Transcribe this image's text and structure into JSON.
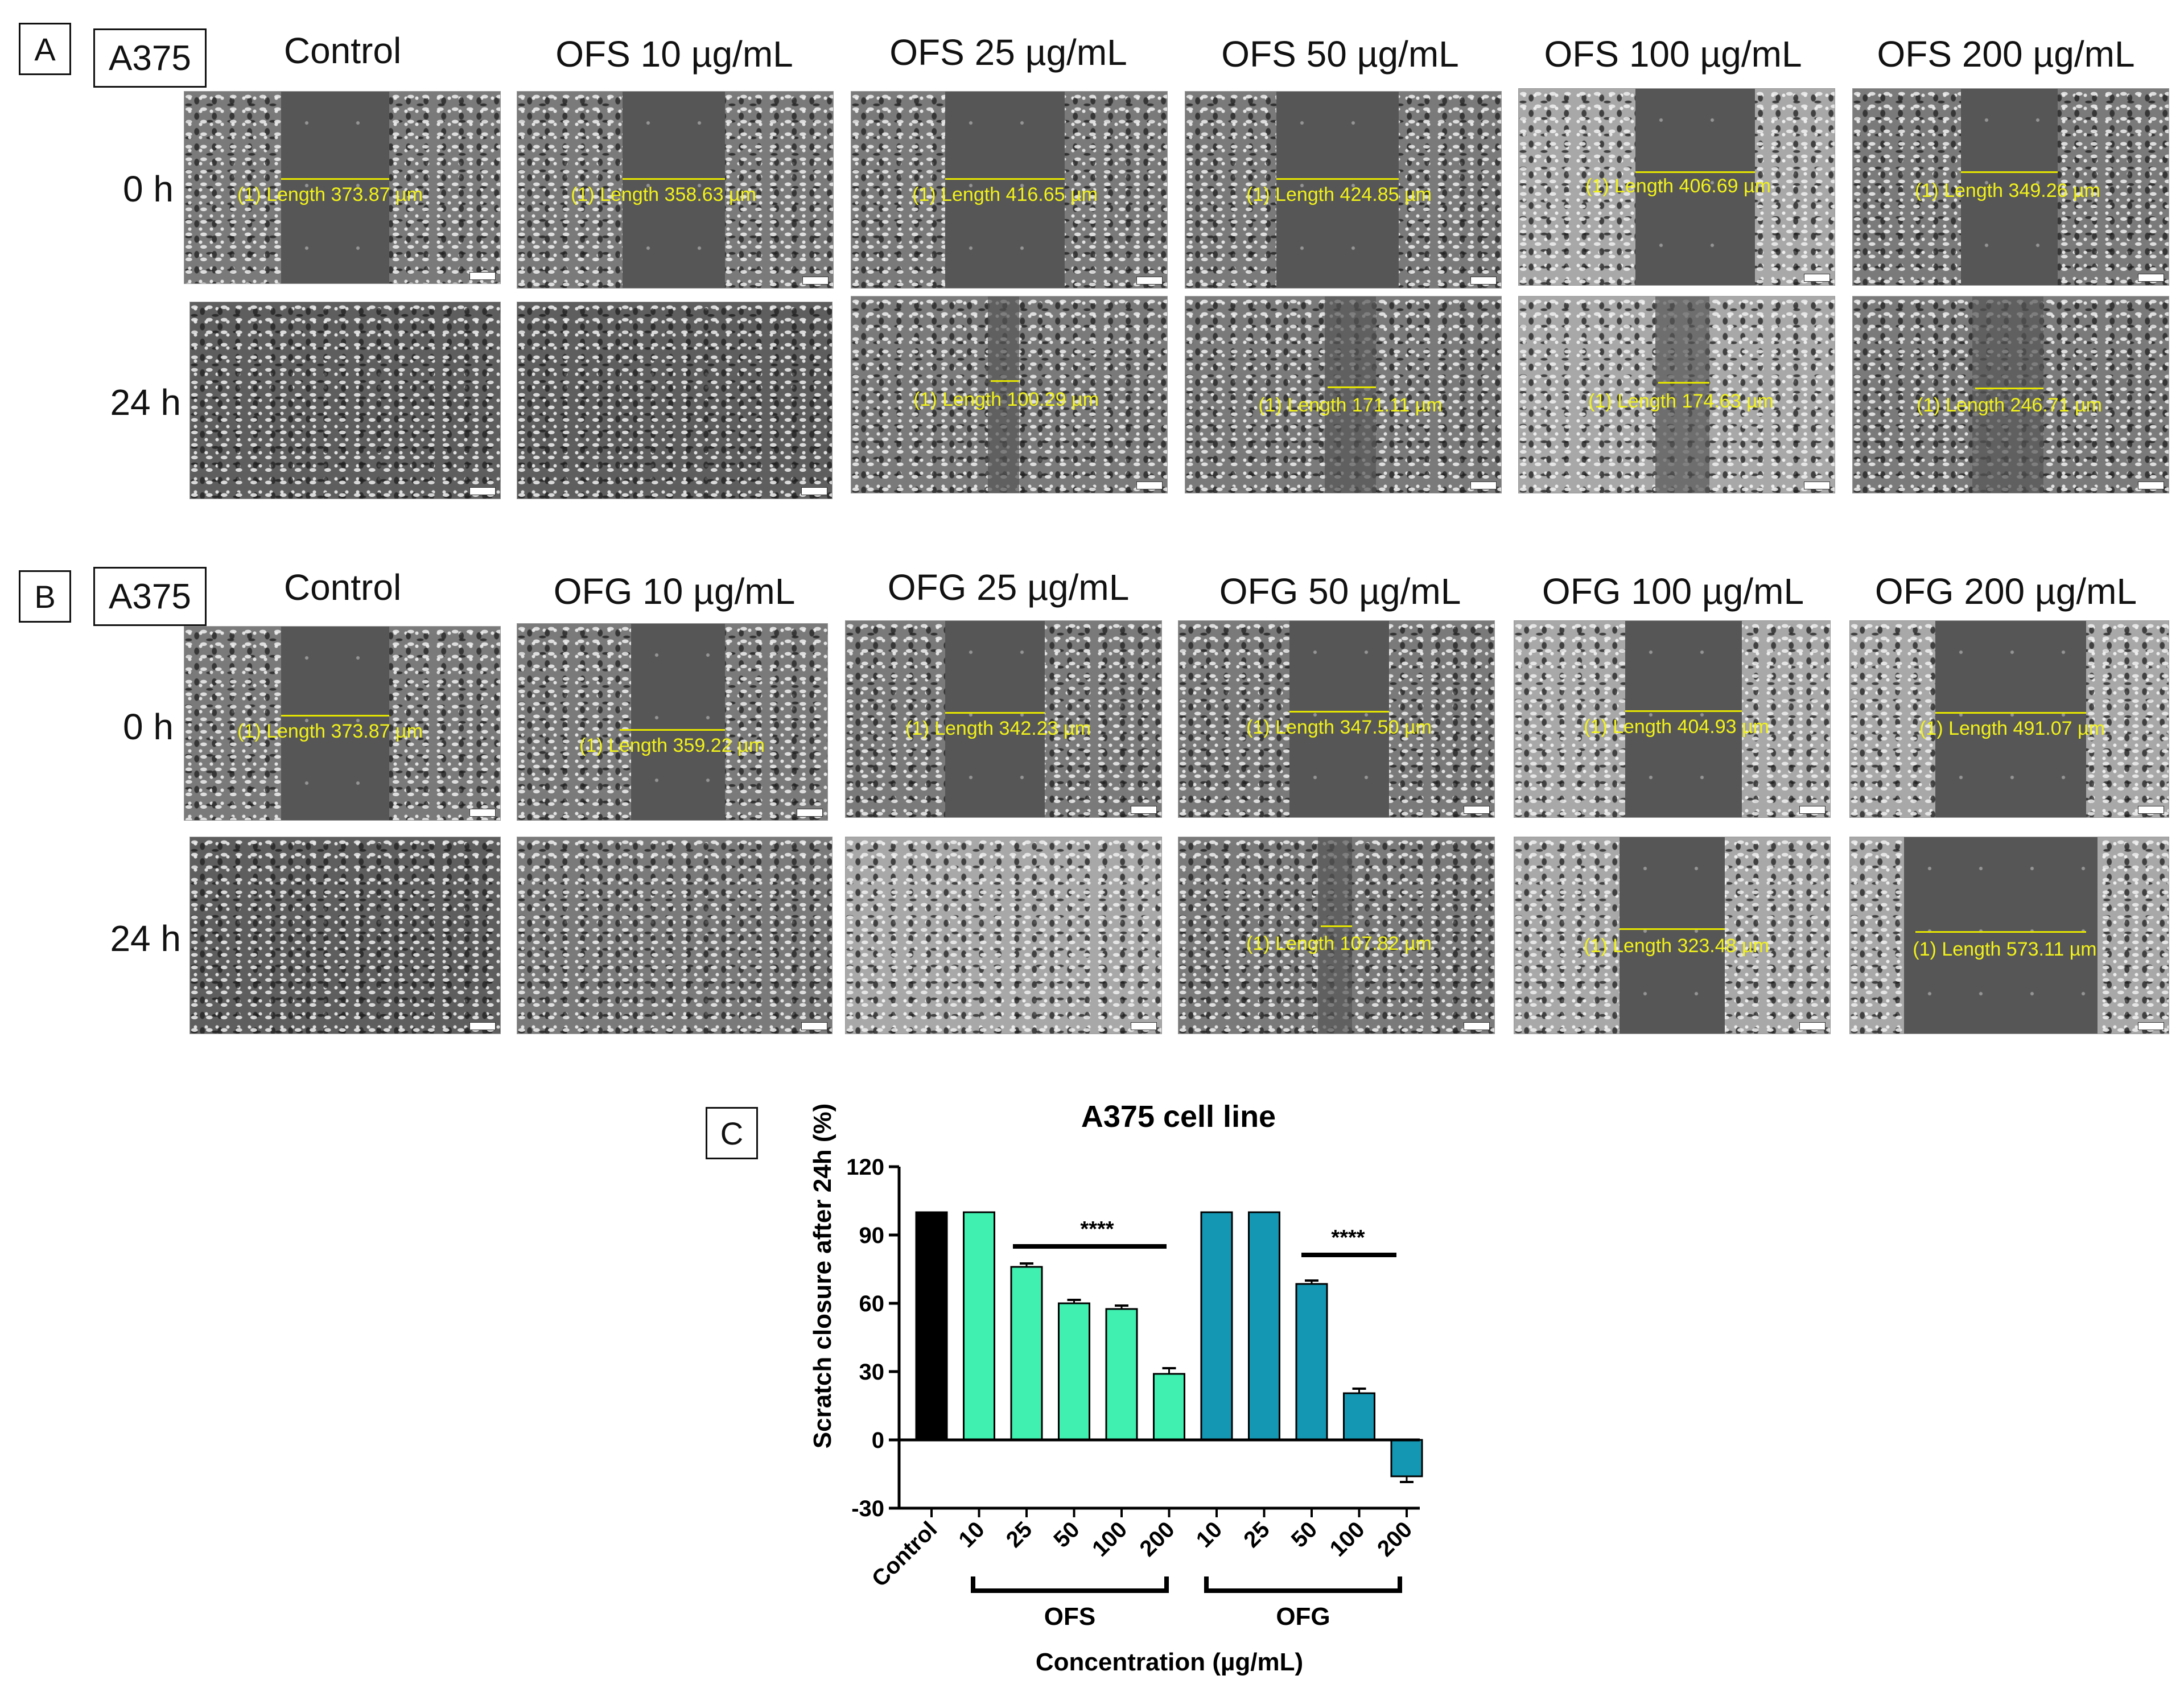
{
  "panel_a": {
    "letter": "A",
    "cell_line": "A375",
    "columns": [
      "Control",
      "OFS 10 µg/mL",
      "OFS 25 µg/mL",
      "OFS 50 µg/mL",
      "OFS 100 µg/mL",
      "OFS 200 µg/mL"
    ],
    "rows": [
      "0 h",
      "24 h"
    ],
    "measurements_0h": [
      "(1) Length 373.87 µm",
      "(1) Length 358.63 µm",
      "(1) Length 416.65 µm",
      "(1) Length 424.85 µm",
      "(1) Length 406.69 µm",
      "(1) Length 349.26 µm"
    ],
    "measurements_24h": [
      "",
      "",
      "(1) Length 100.29 µm",
      "(1) Length 171.11 µm",
      "(1) Length 174.63 µm",
      "(1) Length 246.71 µm"
    ]
  },
  "panel_b": {
    "letter": "B",
    "cell_line": "A375",
    "columns": [
      "Control",
      "OFG 10 µg/mL",
      "OFG 25 µg/mL",
      "OFG 50 µg/mL",
      "OFG 100 µg/mL",
      "OFG 200 µg/mL"
    ],
    "rows": [
      "0 h",
      "24 h"
    ],
    "measurements_0h": [
      "(1) Length 373.87 µm",
      "(1) Length 359.22 µm",
      "(1) Length 342.23 µm",
      "(1) Length 347.50 µm",
      "(1) Length 404.93 µm",
      "(1) Length 491.07 µm"
    ],
    "measurements_24h": [
      "",
      "",
      "",
      "(1) Length 107.82 µm",
      "(1) Length 323.48 µm",
      "(1) Length 573.11 µm"
    ]
  },
  "panel_c": {
    "letter": "C",
    "significance": [
      "****",
      "****"
    ],
    "group_labels": [
      "OFS",
      "OFG"
    ]
  },
  "colors": {
    "control": "#000000",
    "ofs": "#3ff0b0",
    "ofg": "#1497b3",
    "measurement": "#f2f21a"
  },
  "chart_data": {
    "type": "bar",
    "title": "A375 cell line",
    "xlabel": "Concentration (µg/mL)",
    "ylabel": "Scratch closure after 24h (%)",
    "ylim": [
      -30,
      120
    ],
    "yticks": [
      -30,
      0,
      30,
      60,
      90,
      120
    ],
    "categories": [
      "Control",
      "10",
      "25",
      "50",
      "100",
      "200",
      "10",
      "25",
      "50",
      "100",
      "200"
    ],
    "groups": [
      "control",
      "ofs",
      "ofs",
      "ofs",
      "ofs",
      "ofs",
      "ofg",
      "ofg",
      "ofg",
      "ofg",
      "ofg"
    ],
    "values": [
      100,
      100,
      76,
      60,
      57.5,
      29,
      100,
      100,
      68.5,
      20.5,
      -16
    ],
    "errors": [
      0,
      0,
      1.5,
      1.5,
      1.5,
      2.5,
      0,
      0,
      1.5,
      2,
      2.5
    ],
    "grid": false,
    "legend": "none"
  }
}
